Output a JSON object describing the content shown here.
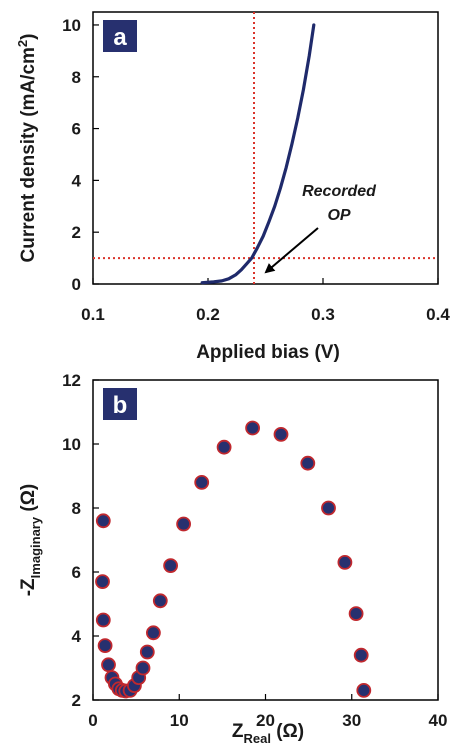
{
  "colors": {
    "curve": "#1f2a6b",
    "marker_fill": "#27306f",
    "marker_edge": "#c0282e",
    "guide": "#d9342b",
    "label_box": "#27306f",
    "axis": "#000000"
  },
  "chart_data": [
    {
      "type": "line",
      "panel_label": "a",
      "xlabel": "Applied bias (V)",
      "ylabel": "Current density (mA/cm",
      "ylabel_sup": "2",
      "ylabel_close": ")",
      "xlim": [
        0.1,
        0.4
      ],
      "ylim": [
        0,
        10.5
      ],
      "xticks": [
        "0.1",
        "0.2",
        "0.3",
        "0.4"
      ],
      "yticks": [
        "0",
        "2",
        "4",
        "6",
        "8",
        "10"
      ],
      "grid": false,
      "series": [
        {
          "x": [
            0.195,
            0.205,
            0.212,
            0.218,
            0.224,
            0.229,
            0.234,
            0.238,
            0.243,
            0.248,
            0.253,
            0.258,
            0.263,
            0.268,
            0.273,
            0.278,
            0.283,
            0.288,
            0.292
          ],
          "y": [
            0.05,
            0.08,
            0.12,
            0.2,
            0.35,
            0.55,
            0.8,
            1.0,
            1.4,
            1.85,
            2.4,
            3.0,
            3.7,
            4.5,
            5.4,
            6.4,
            7.5,
            8.8,
            10.0
          ]
        }
      ],
      "guides": {
        "vline_x": 0.24,
        "hline_y": 1.0
      },
      "annotation": {
        "line1": "Recorded",
        "line2": "OP",
        "points_to": [
          0.24,
          1.0
        ]
      }
    },
    {
      "type": "scatter",
      "panel_label": "b",
      "xlabel_main": "Z",
      "xlabel_sub": "Real",
      "xlabel_unit": " (Ω)",
      "ylabel_main": "-Z",
      "ylabel_sub": "Imaginary",
      "ylabel_unit": " (Ω)",
      "xlim": [
        0,
        40
      ],
      "ylim": [
        2,
        12
      ],
      "xticks": [
        "0",
        "10",
        "20",
        "30",
        "40"
      ],
      "yticks": [
        "2",
        "4",
        "6",
        "8",
        "10",
        "12"
      ],
      "grid": false,
      "series": [
        {
          "x": [
            1.2,
            1.1,
            1.2,
            1.4,
            1.8,
            2.2,
            2.6,
            3.0,
            3.4,
            3.8,
            4.3,
            4.8,
            5.3,
            5.8,
            6.3,
            7.0,
            7.8,
            9.0,
            10.5,
            12.6,
            15.2,
            18.5,
            21.8,
            24.9,
            27.3,
            29.2,
            30.5,
            31.1,
            31.4
          ],
          "y": [
            7.6,
            5.7,
            4.5,
            3.7,
            3.1,
            2.7,
            2.5,
            2.35,
            2.3,
            2.28,
            2.3,
            2.45,
            2.7,
            3.0,
            3.5,
            4.1,
            5.1,
            6.2,
            7.5,
            8.8,
            9.9,
            10.5,
            10.3,
            9.4,
            8.0,
            6.3,
            4.7,
            3.4,
            2.3
          ]
        }
      ]
    }
  ]
}
